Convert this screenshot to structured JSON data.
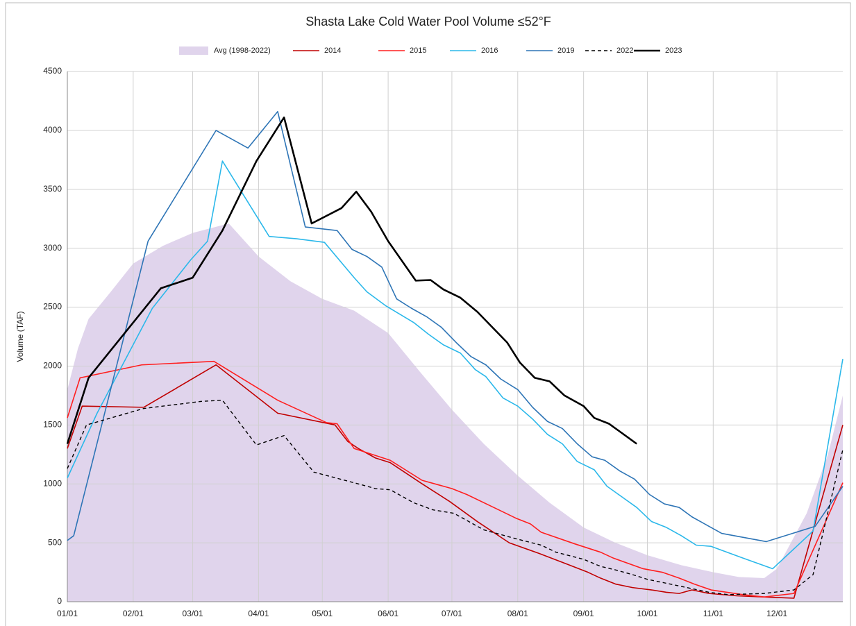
{
  "chart_data": {
    "type": "line",
    "title": "Shasta Lake Cold Water Pool Volume ≤52°F",
    "y_label": "Volume (TAF)",
    "xlim": [
      0,
      365
    ],
    "ylim": [
      0,
      4500
    ],
    "xticks": [
      {
        "value": 0,
        "label": "01/01"
      },
      {
        "value": 31,
        "label": "02/01"
      },
      {
        "value": 59,
        "label": "03/01"
      },
      {
        "value": 90,
        "label": "04/01"
      },
      {
        "value": 120,
        "label": "05/01"
      },
      {
        "value": 151,
        "label": "06/01"
      },
      {
        "value": 181,
        "label": "07/01"
      },
      {
        "value": 212,
        "label": "08/01"
      },
      {
        "value": 243,
        "label": "09/01"
      },
      {
        "value": 273,
        "label": "10/01"
      },
      {
        "value": 304,
        "label": "11/01"
      },
      {
        "value": 334,
        "label": "12/01"
      }
    ],
    "yticks": [
      0,
      500,
      1000,
      1500,
      2000,
      2500,
      3000,
      3500,
      4000,
      4500
    ],
    "grid": true,
    "series": [
      {
        "name": "Avg (1998-2022)",
        "style": "area",
        "color": "#e0d4ec",
        "x": [
          0,
          5,
          10,
          20,
          31,
          45,
          59,
          76,
          90,
          105,
          120,
          135,
          151,
          166,
          181,
          196,
          212,
          227,
          243,
          258,
          273,
          289,
          304,
          316,
          328,
          334,
          348,
          358,
          365
        ],
        "values": [
          1800,
          2150,
          2400,
          2620,
          2870,
          3020,
          3130,
          3210,
          2930,
          2720,
          2570,
          2470,
          2280,
          1950,
          1630,
          1340,
          1070,
          840,
          630,
          500,
          395,
          310,
          250,
          210,
          200,
          280,
          750,
          1250,
          1750
        ]
      },
      {
        "name": "2014",
        "style": "solid",
        "color": "#c00000",
        "x": [
          0,
          7,
          36,
          70,
          99,
          126,
          132,
          137,
          145,
          152,
          167,
          180,
          193,
          208,
          222,
          235,
          245,
          251,
          258,
          266,
          275,
          282,
          288,
          294,
          302,
          315,
          328,
          342,
          365
        ],
        "values": [
          1300,
          1660,
          1650,
          2010,
          1600,
          1500,
          1360,
          1300,
          1220,
          1180,
          1000,
          850,
          680,
          500,
          410,
          320,
          250,
          200,
          150,
          120,
          100,
          80,
          70,
          100,
          70,
          50,
          40,
          30,
          1500
        ]
      },
      {
        "name": "2015",
        "style": "solid",
        "color": "#ff1f1f",
        "x": [
          0,
          6,
          35,
          69,
          99,
          122,
          127,
          135,
          152,
          167,
          181,
          188,
          203,
          211,
          218,
          223,
          239,
          251,
          257,
          271,
          280,
          288,
          295,
          303,
          318,
          328,
          342,
          365
        ],
        "values": [
          1560,
          1900,
          2010,
          2040,
          1710,
          1520,
          1510,
          1300,
          1200,
          1030,
          960,
          910,
          780,
          710,
          660,
          590,
          490,
          420,
          370,
          280,
          250,
          200,
          150,
          100,
          60,
          40,
          70,
          1010
        ]
      },
      {
        "name": "2016",
        "style": "solid",
        "color": "#2bb8ea",
        "x": [
          0,
          14,
          40,
          58,
          66,
          73,
          95,
          108,
          121,
          135,
          141,
          150,
          163,
          170,
          177,
          185,
          192,
          197,
          205,
          212,
          219,
          226,
          233,
          240,
          248,
          254,
          261,
          268,
          275,
          282,
          289,
          296,
          303,
          318,
          332,
          351,
          365
        ],
        "values": [
          1050,
          1600,
          2490,
          2900,
          3060,
          3740,
          3100,
          3080,
          3050,
          2750,
          2630,
          2510,
          2370,
          2270,
          2180,
          2110,
          1970,
          1910,
          1730,
          1660,
          1550,
          1420,
          1340,
          1190,
          1120,
          980,
          890,
          800,
          680,
          630,
          560,
          480,
          470,
          370,
          280,
          600,
          2060
        ]
      },
      {
        "name": "2019",
        "style": "solid",
        "color": "#2e75b6",
        "x": [
          0,
          3,
          38,
          70,
          85,
          99,
          112,
          127,
          134,
          141,
          148,
          155,
          162,
          169,
          176,
          183,
          190,
          197,
          204,
          212,
          219,
          226,
          233,
          240,
          247,
          253,
          260,
          267,
          274,
          281,
          288,
          294,
          301,
          308,
          329,
          352,
          365
        ],
        "values": [
          520,
          560,
          3060,
          4000,
          3850,
          4160,
          3180,
          3150,
          2990,
          2930,
          2840,
          2570,
          2490,
          2420,
          2330,
          2200,
          2080,
          2010,
          1890,
          1800,
          1650,
          1530,
          1470,
          1340,
          1230,
          1200,
          1110,
          1040,
          910,
          830,
          800,
          720,
          650,
          580,
          510,
          640,
          980
        ]
      },
      {
        "name": "2022",
        "style": "dashed",
        "color": "#000000",
        "x": [
          0,
          9,
          36,
          63,
          73,
          89,
          102,
          116,
          139,
          145,
          152,
          163,
          172,
          182,
          196,
          210,
          223,
          230,
          243,
          251,
          258,
          266,
          273,
          289,
          302,
          311,
          328,
          342,
          351,
          365
        ],
        "values": [
          1130,
          1500,
          1640,
          1700,
          1710,
          1330,
          1410,
          1100,
          990,
          960,
          950,
          840,
          780,
          750,
          610,
          540,
          480,
          420,
          360,
          300,
          270,
          230,
          190,
          130,
          80,
          60,
          70,
          100,
          230,
          1290
        ]
      },
      {
        "name": "2023",
        "style": "bold",
        "color": "#000000",
        "x": [
          0,
          10,
          44,
          59,
          73,
          89,
          102,
          115,
          129,
          136,
          143,
          151,
          164,
          171,
          177,
          185,
          193,
          207,
          213,
          220,
          227,
          234,
          243,
          248,
          255,
          268
        ],
        "values": [
          1340,
          1900,
          2660,
          2750,
          3150,
          3740,
          4110,
          3210,
          3340,
          3480,
          3310,
          3060,
          2725,
          2730,
          2650,
          2580,
          2460,
          2200,
          2030,
          1900,
          1870,
          1750,
          1660,
          1560,
          1510,
          1340
        ]
      }
    ]
  }
}
